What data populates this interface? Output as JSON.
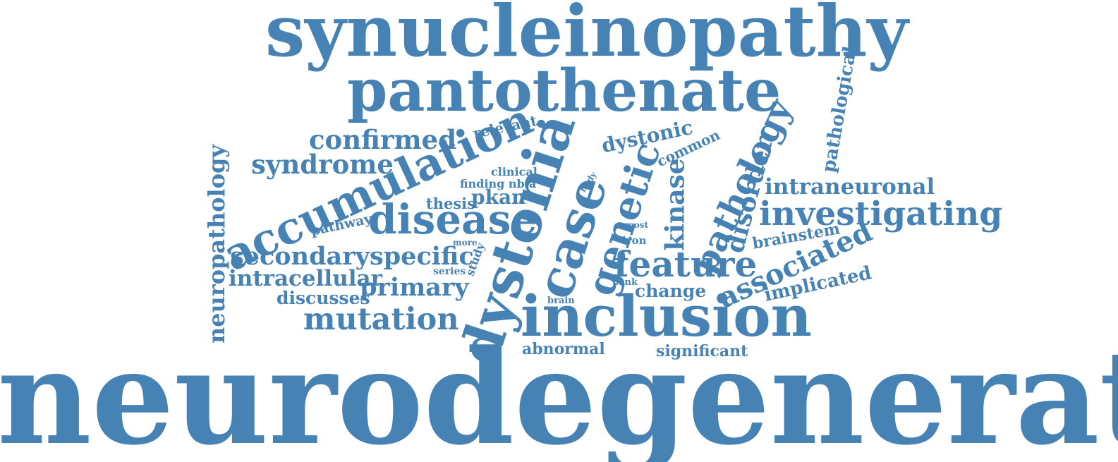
{
  "color": "#4682b4",
  "words": [
    {
      "id": "neurodegeneration",
      "text": "neurodegeneration"
    },
    {
      "id": "synucleinopathy",
      "text": "synucleinopathy"
    },
    {
      "id": "pantothenate",
      "text": "pantothenate"
    },
    {
      "id": "inclusion",
      "text": "inclusion"
    },
    {
      "id": "accumulation",
      "text": "accumulation."
    },
    {
      "id": "dystonia",
      "text": "dystonia"
    },
    {
      "id": "case",
      "text": "case"
    },
    {
      "id": "genetic",
      "text": "genetic"
    },
    {
      "id": "disease",
      "text": "disease"
    },
    {
      "id": "investigating",
      "text": "investigating"
    },
    {
      "id": "feature",
      "text": "feature"
    },
    {
      "id": "mutation",
      "text": "mutation"
    },
    {
      "id": "pathology",
      "text": "pathology"
    },
    {
      "id": "associated",
      "text": "associated"
    },
    {
      "id": "neuropathology",
      "text": "neuropathology"
    },
    {
      "id": "disorder",
      "text": "disorder"
    },
    {
      "id": "secondary",
      "text": "secondary"
    },
    {
      "id": "specific",
      "text": "specific"
    },
    {
      "id": "primary",
      "text": "primary"
    },
    {
      "id": "confirmed",
      "text": "confirmed"
    },
    {
      "id": "syndrome",
      "text": "syndrome"
    },
    {
      "id": "intracellular",
      "text": "intracellular"
    },
    {
      "id": "intraneuronal",
      "text": "intraneuronal"
    },
    {
      "id": "kinase",
      "text": "kinase"
    },
    {
      "id": "dystonic",
      "text": "dystonic"
    },
    {
      "id": "pathological",
      "text": "pathological"
    },
    {
      "id": "pkan",
      "text": "pkan"
    },
    {
      "id": "implicated",
      "text": "implicated"
    },
    {
      "id": "discusses",
      "text": "discusses"
    },
    {
      "id": "brainstem",
      "text": "brainstem"
    },
    {
      "id": "change",
      "text": "change"
    },
    {
      "id": "abnormal",
      "text": "abnormal"
    },
    {
      "id": "significant",
      "text": "significant"
    },
    {
      "id": "common",
      "text": "common"
    },
    {
      "id": "relevant",
      "text": "relevant"
    },
    {
      "id": "thesis",
      "text": "thesis"
    },
    {
      "id": "pathway",
      "text": "pathway"
    },
    {
      "id": "clinical",
      "text": "clinical"
    },
    {
      "id": "finding-nbia",
      "text": "finding nbia"
    },
    {
      "id": "study",
      "text": "study"
    },
    {
      "id": "series",
      "text": "series"
    },
    {
      "id": "more",
      "text": "more"
    },
    {
      "id": "iron",
      "text": "iron"
    },
    {
      "id": "most",
      "text": "most"
    },
    {
      "id": "body",
      "text": "body"
    },
    {
      "id": "pank",
      "text": "pank"
    },
    {
      "id": "brain",
      "text": "brain"
    }
  ]
}
